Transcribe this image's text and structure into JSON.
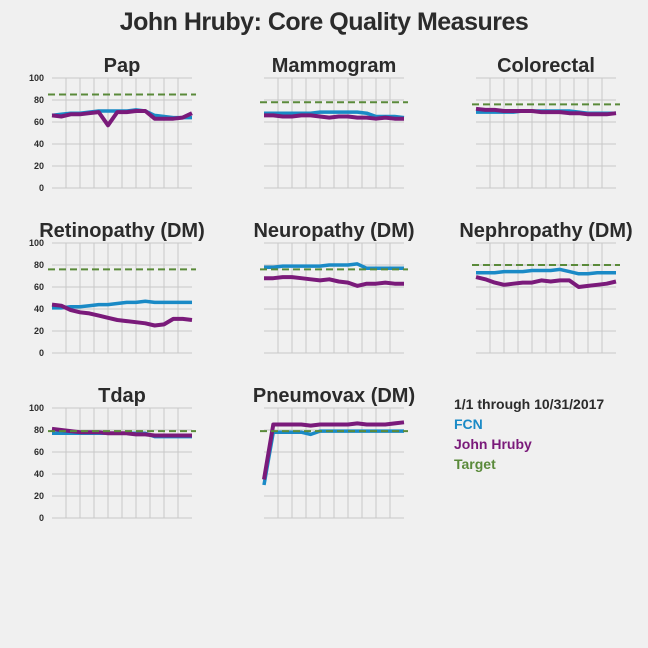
{
  "title": "John Hruby: Core Quality Measures",
  "legend": {
    "period": "1/1 through 10/31/2017",
    "items": [
      {
        "label": "FCN",
        "color": "#1a8ac6"
      },
      {
        "label": "John Hruby",
        "color": "#7a1a7a"
      },
      {
        "label": "Target",
        "color": "#5a8a3a"
      }
    ]
  },
  "colors": {
    "fcn": "#1a8ac6",
    "provider": "#7a1a7a",
    "target": "#5a8a3a",
    "grid": "#c8c8c8",
    "text": "#2b2b2b"
  },
  "chart_data": [
    {
      "type": "line",
      "title": "Pap",
      "ylim": [
        0,
        100
      ],
      "yticks": [
        "0",
        "20",
        "40",
        "60",
        "80",
        "100"
      ],
      "series": [
        {
          "name": "FCN",
          "values": [
            66,
            67,
            68,
            68,
            69,
            70,
            70,
            70,
            70,
            71,
            70,
            66,
            65,
            64,
            64,
            64
          ]
        },
        {
          "name": "John Hruby",
          "values": [
            66,
            65,
            67,
            67,
            68,
            69,
            57,
            69,
            69,
            70,
            70,
            63,
            63,
            63,
            64,
            68
          ]
        },
        {
          "name": "Target",
          "values": [
            85,
            85
          ]
        }
      ]
    },
    {
      "type": "line",
      "title": "Mammogram",
      "ylim": [
        0,
        100
      ],
      "yticks": [],
      "series": [
        {
          "name": "FCN",
          "values": [
            68,
            68,
            68,
            68,
            68,
            68,
            69,
            69,
            69,
            69,
            69,
            68,
            65,
            65,
            65,
            64
          ]
        },
        {
          "name": "John Hruby",
          "values": [
            66,
            66,
            65,
            65,
            66,
            66,
            65,
            64,
            65,
            65,
            64,
            64,
            63,
            64,
            63,
            63
          ]
        },
        {
          "name": "Target",
          "values": [
            78,
            78
          ]
        }
      ]
    },
    {
      "type": "line",
      "title": "Colorectal",
      "ylim": [
        0,
        100
      ],
      "yticks": [],
      "series": [
        {
          "name": "FCN",
          "values": [
            69,
            69,
            69,
            69,
            69,
            70,
            70,
            70,
            70,
            70,
            70,
            69,
            68,
            68,
            68,
            68
          ]
        },
        {
          "name": "John Hruby",
          "values": [
            72,
            71,
            71,
            70,
            70,
            70,
            70,
            69,
            69,
            69,
            68,
            68,
            67,
            67,
            67,
            68
          ]
        },
        {
          "name": "Target",
          "values": [
            76,
            76
          ]
        }
      ]
    },
    {
      "type": "line",
      "title": "Retinopathy (DM)",
      "ylim": [
        0,
        100
      ],
      "yticks": [
        "0",
        "20",
        "40",
        "60",
        "80",
        "100"
      ],
      "series": [
        {
          "name": "FCN",
          "values": [
            41,
            41,
            42,
            42,
            43,
            44,
            44,
            45,
            46,
            46,
            47,
            46,
            46,
            46,
            46,
            46
          ]
        },
        {
          "name": "John Hruby",
          "values": [
            44,
            43,
            39,
            37,
            36,
            34,
            32,
            30,
            29,
            28,
            27,
            25,
            26,
            31,
            31,
            30
          ]
        },
        {
          "name": "Target",
          "values": [
            76,
            76
          ]
        }
      ]
    },
    {
      "type": "line",
      "title": "Neuropathy (DM)",
      "ylim": [
        0,
        100
      ],
      "yticks": [],
      "series": [
        {
          "name": "FCN",
          "values": [
            78,
            78,
            79,
            79,
            79,
            79,
            79,
            80,
            80,
            80,
            81,
            77,
            77,
            77,
            77,
            77
          ]
        },
        {
          "name": "John Hruby",
          "values": [
            68,
            68,
            69,
            69,
            68,
            67,
            66,
            67,
            65,
            64,
            61,
            63,
            63,
            64,
            63,
            63
          ]
        },
        {
          "name": "Target",
          "values": [
            76,
            76
          ]
        }
      ]
    },
    {
      "type": "line",
      "title": "Nephropathy (DM)",
      "ylim": [
        0,
        100
      ],
      "yticks": [],
      "series": [
        {
          "name": "FCN",
          "values": [
            73,
            73,
            73,
            74,
            74,
            74,
            75,
            75,
            75,
            76,
            74,
            72,
            72,
            73,
            73,
            73
          ]
        },
        {
          "name": "John Hruby",
          "values": [
            69,
            67,
            64,
            62,
            63,
            64,
            64,
            66,
            65,
            66,
            66,
            60,
            61,
            62,
            63,
            65
          ]
        },
        {
          "name": "Target",
          "values": [
            80,
            80
          ]
        }
      ]
    },
    {
      "type": "line",
      "title": "Tdap",
      "ylim": [
        0,
        100
      ],
      "yticks": [
        "0",
        "20",
        "40",
        "60",
        "80",
        "100"
      ],
      "series": [
        {
          "name": "FCN",
          "values": [
            77,
            77,
            77,
            77,
            77,
            77,
            77,
            77,
            77,
            77,
            77,
            74,
            74,
            74,
            74,
            74
          ]
        },
        {
          "name": "John Hruby",
          "values": [
            81,
            80,
            79,
            78,
            78,
            78,
            77,
            77,
            77,
            76,
            76,
            75,
            75,
            75,
            75,
            75
          ]
        },
        {
          "name": "Target",
          "values": [
            79,
            79
          ]
        }
      ]
    },
    {
      "type": "line",
      "title": "Pneumovax (DM)",
      "ylim": [
        0,
        100
      ],
      "yticks": [],
      "series": [
        {
          "name": "FCN",
          "values": [
            30,
            78,
            78,
            78,
            78,
            76,
            79,
            79,
            79,
            79,
            79,
            79,
            79,
            79,
            79,
            79
          ]
        },
        {
          "name": "John Hruby",
          "values": [
            35,
            85,
            85,
            85,
            85,
            84,
            85,
            85,
            85,
            85,
            86,
            85,
            85,
            85,
            86,
            87
          ]
        },
        {
          "name": "Target",
          "values": [
            79,
            79
          ]
        }
      ]
    }
  ]
}
